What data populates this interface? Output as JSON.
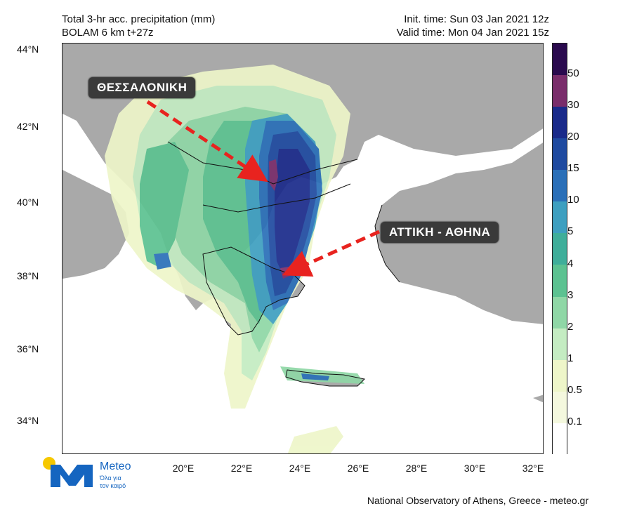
{
  "header": {
    "title_line1": "Total 3-hr acc. precipitation (mm)",
    "title_line2": "BOLAM 6 km t+27z",
    "init_time": "Init. time: Sun 03 Jan 2021 12z",
    "valid_time": "Valid time: Mon 04 Jan 2021 15z"
  },
  "latitude_labels": [
    "44°N",
    "42°N",
    "40°N",
    "38°N",
    "36°N",
    "34°N"
  ],
  "longitude_labels": [
    "20°E",
    "22°E",
    "24°E",
    "26°E",
    "28°E",
    "30°E",
    "32°E"
  ],
  "legend": {
    "labels": [
      "50",
      "30",
      "20",
      "15",
      "10",
      "5",
      "4",
      "3",
      "2",
      "1",
      "0.5",
      "0.1"
    ],
    "colors": [
      "#2a0a4e",
      "#7a2d6b",
      "#1a2a8a",
      "#1f4aa0",
      "#2a6fb8",
      "#3d9fc0",
      "#3fae9a",
      "#5cc291",
      "#8fd7a6",
      "#c4ecc2",
      "#eef6c9",
      "#f4f8de",
      "#ffffff"
    ]
  },
  "callouts": {
    "thessaloniki": "ΘΕΣΣΑΛΟΝΙΚΗ",
    "athens": "ΑΤΤΙΚΗ - ΑΘΗΝΑ"
  },
  "logo": {
    "name": "Meteo",
    "tagline_line1": "Όλα για",
    "tagline_line2": "τον καιρό"
  },
  "footer": "National Observatory of Athens, Greece - meteo.gr"
}
